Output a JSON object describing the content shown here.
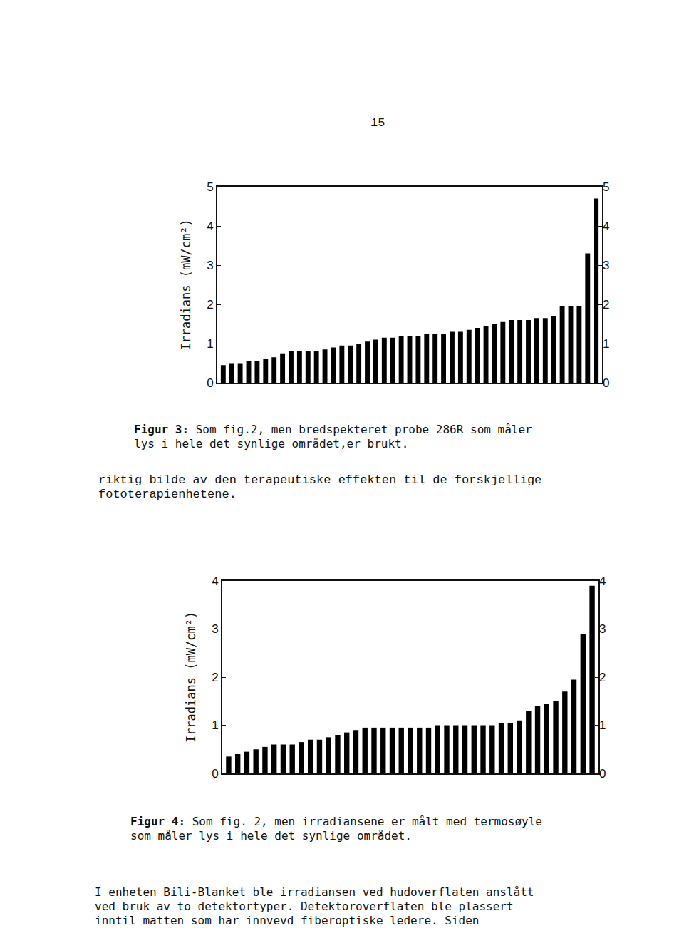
{
  "page_number": "15",
  "chart_data": [
    {
      "type": "bar",
      "ylabel": "Irradians (mW/cm²)",
      "categories": [
        null,
        null,
        null,
        null,
        null,
        null,
        null,
        null,
        null,
        null,
        null,
        null,
        null,
        null,
        null,
        null,
        null,
        null,
        null,
        null,
        null,
        null,
        null,
        null,
        null,
        null,
        null,
        null,
        null,
        null,
        null,
        null,
        null,
        null,
        null,
        null,
        null,
        null,
        null,
        null,
        null,
        null,
        null,
        null,
        null
      ],
      "values": [
        0.45,
        0.5,
        0.5,
        0.55,
        0.55,
        0.6,
        0.65,
        0.75,
        0.8,
        0.8,
        0.8,
        0.8,
        0.85,
        0.9,
        0.95,
        0.95,
        1.0,
        1.05,
        1.1,
        1.15,
        1.15,
        1.2,
        1.2,
        1.2,
        1.25,
        1.25,
        1.25,
        1.3,
        1.3,
        1.35,
        1.4,
        1.45,
        1.5,
        1.55,
        1.6,
        1.6,
        1.6,
        1.65,
        1.65,
        1.7,
        1.95,
        1.95,
        1.95,
        3.3,
        4.7
      ],
      "color": "#000000",
      "ylim": [
        0,
        5
      ],
      "yticks": [
        0,
        1,
        2,
        3,
        4,
        5
      ],
      "y2lim": [
        0,
        5
      ],
      "y2ticks": [
        0,
        1,
        2,
        3,
        4,
        5
      ],
      "tick_labels": "y"
    },
    {
      "type": "bar",
      "ylabel": "Irradians (mW/cm²)",
      "categories": [
        null,
        null,
        null,
        null,
        null,
        null,
        null,
        null,
        null,
        null,
        null,
        null,
        null,
        null,
        null,
        null,
        null,
        null,
        null,
        null,
        null,
        null,
        null,
        null,
        null,
        null,
        null,
        null,
        null,
        null,
        null,
        null,
        null,
        null,
        null,
        null,
        null,
        null,
        null,
        null,
        null
      ],
      "values": [
        0.35,
        0.4,
        0.45,
        0.5,
        0.55,
        0.6,
        0.6,
        0.6,
        0.65,
        0.7,
        0.7,
        0.75,
        0.8,
        0.85,
        0.9,
        0.95,
        0.95,
        0.95,
        0.95,
        0.95,
        0.95,
        0.95,
        0.95,
        1.0,
        1.0,
        1.0,
        1.0,
        1.0,
        1.0,
        1.0,
        1.05,
        1.05,
        1.1,
        1.3,
        1.4,
        1.45,
        1.5,
        1.7,
        1.95,
        2.9,
        3.9
      ],
      "color": "#000000",
      "ylim": [
        0,
        4
      ],
      "yticks": [
        0,
        1,
        2,
        3,
        4
      ],
      "y2lim": [
        0,
        4
      ],
      "y2ticks": [
        0,
        1,
        2,
        3,
        4
      ],
      "tick_labels": "y"
    }
  ],
  "figure_captions": [
    {
      "label": "Figur 3:",
      "lines": [
        " Som fig.2, men bredspekteret probe 286R som måler",
        "lys i hele det synlige området,er brukt."
      ]
    },
    {
      "label": "Figur 4:",
      "lines": [
        " Som fig. 2, men irradiansene er målt med termosøyle",
        "som måler lys i hele det synlige området."
      ]
    }
  ],
  "paragraphs": [
    [
      "riktig bilde av den terapeutiske effekten til de forskjellige",
      "fototerapienhetene."
    ],
    [
      "I enheten Bili-Blanket ble irradiansen ved hudoverflaten anslått",
      "ved bruk av to detektortyper. Detektoroverflaten ble plassert",
      "inntil matten som har innvevd fiberoptiske ledere. Siden"
    ]
  ]
}
